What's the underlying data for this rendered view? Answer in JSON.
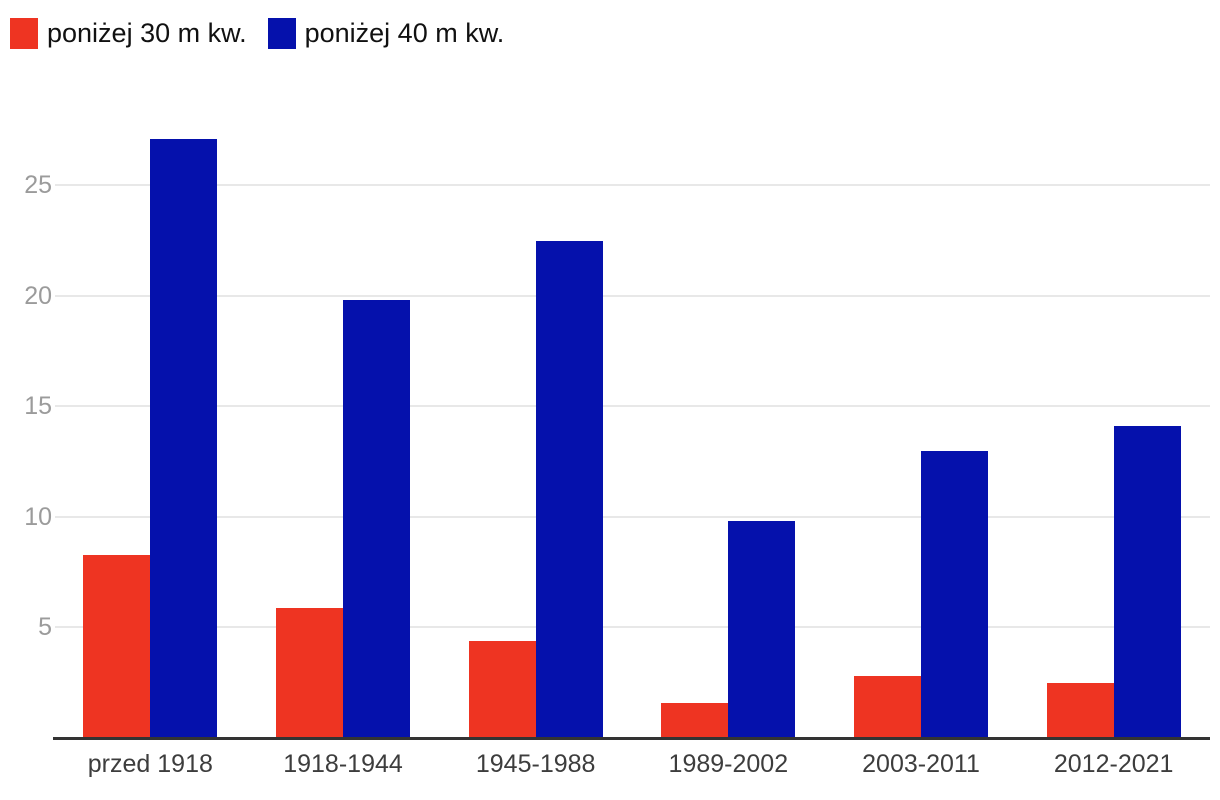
{
  "chart_data": {
    "type": "bar",
    "title": "",
    "xlabel": "",
    "ylabel": "",
    "categories": [
      "przed 1918",
      "1918-1944",
      "1945-1988",
      "1989-2002",
      "2003-2011",
      "2012-2021"
    ],
    "series": [
      {
        "name": "poniżej 30 m kw.",
        "color": "#ee3422",
        "values": [
          8.3,
          5.9,
          4.4,
          1.6,
          2.8,
          2.5
        ]
      },
      {
        "name": "poniżej 40 m kw.",
        "color": "#0511ac",
        "values": [
          27.1,
          19.8,
          22.5,
          9.8,
          13.0,
          14.1
        ]
      }
    ],
    "yticks": [
      5,
      10,
      15,
      20,
      25
    ],
    "ylim": [
      0,
      28.5
    ],
    "grid": true,
    "legend_position": "top-left",
    "colors": {
      "series_below_30": "#ee3422",
      "series_below_40": "#0511ac",
      "gridline": "#e8e8e8",
      "axis_line": "#333333",
      "y_tick_text": "#9b9b9b",
      "x_tick_text": "#3d3d3d",
      "legend_text": "#111111",
      "background": "#ffffff"
    }
  }
}
